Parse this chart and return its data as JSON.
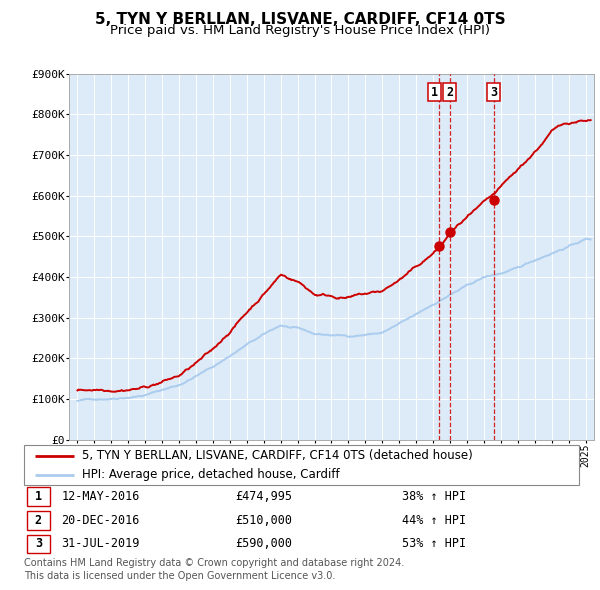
{
  "title": "5, TYN Y BERLLAN, LISVANE, CARDIFF, CF14 0TS",
  "subtitle": "Price paid vs. HM Land Registry's House Price Index (HPI)",
  "hpi_label": "HPI: Average price, detached house, Cardiff",
  "property_label": "5, TYN Y BERLLAN, LISVANE, CARDIFF, CF14 0TS (detached house)",
  "hpi_color": "#aaccee",
  "property_color": "#cc0000",
  "plot_bg_color": "#ddeaf7",
  "ylim": [
    0,
    900000
  ],
  "yticks": [
    0,
    100000,
    200000,
    300000,
    400000,
    500000,
    600000,
    700000,
    800000,
    900000
  ],
  "ytick_labels": [
    "£0",
    "£100K",
    "£200K",
    "£300K",
    "£400K",
    "£500K",
    "£600K",
    "£700K",
    "£800K",
    "£900K"
  ],
  "xlim_start": 1994.5,
  "xlim_end": 2025.5,
  "sale_points": [
    {
      "label": "1",
      "year": 2016.36,
      "value": 474995,
      "vline": 2016.36
    },
    {
      "label": "2",
      "year": 2016.97,
      "value": 510000,
      "vline": 2016.97
    },
    {
      "label": "3",
      "year": 2019.58,
      "value": 590000,
      "vline": 2019.58
    }
  ],
  "table_rows": [
    {
      "num": "1",
      "date": "12-MAY-2016",
      "price": "£474,995",
      "pct": "38% ↑ HPI"
    },
    {
      "num": "2",
      "date": "20-DEC-2016",
      "price": "£510,000",
      "pct": "44% ↑ HPI"
    },
    {
      "num": "3",
      "date": "31-JUL-2019",
      "price": "£590,000",
      "pct": "53% ↑ HPI"
    }
  ],
  "footnote1": "Contains HM Land Registry data © Crown copyright and database right 2024.",
  "footnote2": "This data is licensed under the Open Government Licence v3.0.",
  "title_fontsize": 11,
  "subtitle_fontsize": 9.5,
  "tick_fontsize": 8,
  "legend_fontsize": 8.5,
  "table_fontsize": 8.5
}
